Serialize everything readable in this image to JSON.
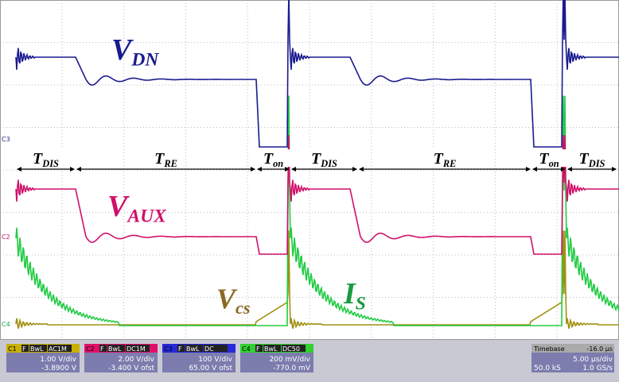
{
  "annotations": [
    {
      "main": "V",
      "sub": "DN"
    },
    {
      "main": "V",
      "sub": "AUX"
    },
    {
      "main": "V",
      "sub": "cs"
    },
    {
      "main": "I",
      "sub": "S"
    }
  ],
  "intervals": [
    {
      "main": "T",
      "sub": "DIS"
    },
    {
      "main": "T",
      "sub": "RE"
    },
    {
      "main": "T",
      "sub": "on"
    },
    {
      "main": "T",
      "sub": "DIS"
    },
    {
      "main": "T",
      "sub": "RE"
    },
    {
      "main": "T",
      "sub": "on"
    },
    {
      "main": "T",
      "sub": "DIS"
    }
  ],
  "channel_markers": [
    "C3",
    "C2",
    "C4"
  ],
  "channels": [
    {
      "name": "C1",
      "flags": [
        "F",
        "BwL",
        "AC1M"
      ],
      "scale": "1.00 V/div",
      "offset": "-3.8900 V"
    },
    {
      "name": "C2",
      "flags": [
        "F",
        "BwL",
        "DC1M"
      ],
      "scale": "2.00 V/div",
      "offset": "-3.400 V ofst"
    },
    {
      "name": "C3",
      "flags": [
        "F",
        "BwL",
        "DC"
      ],
      "scale": "100 V/div",
      "offset": "65.00 V ofst"
    },
    {
      "name": "C4",
      "flags": [
        "F",
        "BwL",
        "DC50"
      ],
      "scale": "200 mV/div",
      "offset": "-770.0 mV"
    }
  ],
  "timebase": {
    "label": "Timebase",
    "delay": "-16.0 µs",
    "scale": "5.00 µs/div",
    "samples": "50.0 kS",
    "rate": "1.0 GS/s"
  }
}
